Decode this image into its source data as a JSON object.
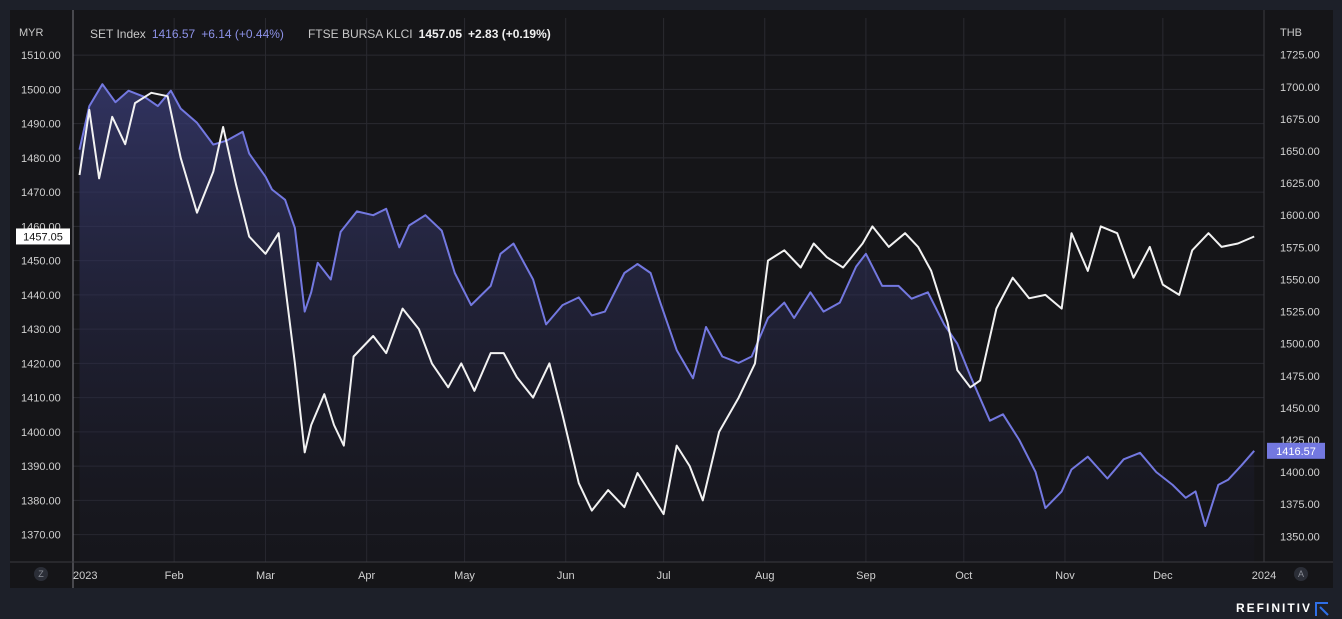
{
  "legend": {
    "set_name": "SET Index",
    "set_value": "1416.57",
    "set_change": "+6.14 (+0.44%)",
    "klci_name": "FTSE BURSA KLCI",
    "klci_value": "1457.05",
    "klci_change": "+2.83 (+0.19%)"
  },
  "axes": {
    "left_unit": "MYR",
    "right_unit": "THB",
    "left_ticks": [
      "1510.00",
      "1500.00",
      "1490.00",
      "1480.00",
      "1470.00",
      "1460.00",
      "1450.00",
      "1440.00",
      "1430.00",
      "1420.00",
      "1410.00",
      "1400.00",
      "1390.00",
      "1380.00",
      "1370.00"
    ],
    "right_ticks": [
      "1725.00",
      "1700.00",
      "1675.00",
      "1650.00",
      "1625.00",
      "1600.00",
      "1575.00",
      "1550.00",
      "1525.00",
      "1500.00",
      "1475.00",
      "1450.00",
      "1425.00",
      "1400.00",
      "1375.00",
      "1350.00"
    ],
    "months": [
      "2023",
      "Feb",
      "Mar",
      "Apr",
      "May",
      "Jun",
      "Jul",
      "Aug",
      "Sep",
      "Oct",
      "Nov",
      "Dec",
      "2024"
    ]
  },
  "buttons": {
    "left": "Z",
    "right": "A"
  },
  "brand": "REFINITIV",
  "colors": {
    "set": "#7378e0",
    "klci": "#f2f2f2",
    "background": "#151518",
    "grid": "#2a2a30"
  },
  "chart_data": {
    "type": "line",
    "x_range": [
      "2023-01-01",
      "2024-01-01"
    ],
    "grid": true,
    "series": [
      {
        "name": "SET Index",
        "axis": "right (THB)",
        "current_value": 1416.57,
        "area_fill": true,
        "points": [
          [
            "2023-01-03",
            1651
          ],
          [
            "2023-01-06",
            1685
          ],
          [
            "2023-01-10",
            1702
          ],
          [
            "2023-01-14",
            1688
          ],
          [
            "2023-01-18",
            1697
          ],
          [
            "2023-01-23",
            1692
          ],
          [
            "2023-01-27",
            1685
          ],
          [
            "2023-01-31",
            1697
          ],
          [
            "2023-02-03",
            1683
          ],
          [
            "2023-02-08",
            1672
          ],
          [
            "2023-02-13",
            1655
          ],
          [
            "2023-02-17",
            1658
          ],
          [
            "2023-02-22",
            1665
          ],
          [
            "2023-02-24",
            1648
          ],
          [
            "2023-03-01",
            1630
          ],
          [
            "2023-03-03",
            1620
          ],
          [
            "2023-03-07",
            1612
          ],
          [
            "2023-03-10",
            1590
          ],
          [
            "2023-03-13",
            1525
          ],
          [
            "2023-03-15",
            1540
          ],
          [
            "2023-03-17",
            1563
          ],
          [
            "2023-03-21",
            1550
          ],
          [
            "2023-03-24",
            1587
          ],
          [
            "2023-03-29",
            1603
          ],
          [
            "2023-04-03",
            1600
          ],
          [
            "2023-04-07",
            1605
          ],
          [
            "2023-04-11",
            1575
          ],
          [
            "2023-04-14",
            1592
          ],
          [
            "2023-04-19",
            1600
          ],
          [
            "2023-04-24",
            1588
          ],
          [
            "2023-04-28",
            1555
          ],
          [
            "2023-05-03",
            1530
          ],
          [
            "2023-05-09",
            1545
          ],
          [
            "2023-05-12",
            1570
          ],
          [
            "2023-05-16",
            1578
          ],
          [
            "2023-05-22",
            1550
          ],
          [
            "2023-05-26",
            1515
          ],
          [
            "2023-05-31",
            1530
          ],
          [
            "2023-06-05",
            1536
          ],
          [
            "2023-06-09",
            1522
          ],
          [
            "2023-06-13",
            1525
          ],
          [
            "2023-06-19",
            1555
          ],
          [
            "2023-06-23",
            1562
          ],
          [
            "2023-06-27",
            1555
          ],
          [
            "2023-06-30",
            1532
          ],
          [
            "2023-07-05",
            1495
          ],
          [
            "2023-07-10",
            1473
          ],
          [
            "2023-07-14",
            1513
          ],
          [
            "2023-07-19",
            1490
          ],
          [
            "2023-07-24",
            1485
          ],
          [
            "2023-07-28",
            1490
          ],
          [
            "2023-08-02",
            1520
          ],
          [
            "2023-08-07",
            1532
          ],
          [
            "2023-08-10",
            1520
          ],
          [
            "2023-08-15",
            1540
          ],
          [
            "2023-08-19",
            1525
          ],
          [
            "2023-08-24",
            1532
          ],
          [
            "2023-08-29",
            1560
          ],
          [
            "2023-09-01",
            1570
          ],
          [
            "2023-09-06",
            1545
          ],
          [
            "2023-09-11",
            1545
          ],
          [
            "2023-09-15",
            1535
          ],
          [
            "2023-09-20",
            1540
          ],
          [
            "2023-09-25",
            1515
          ],
          [
            "2023-09-29",
            1500
          ],
          [
            "2023-10-03",
            1475
          ],
          [
            "2023-10-09",
            1440
          ],
          [
            "2023-10-13",
            1445
          ],
          [
            "2023-10-18",
            1425
          ],
          [
            "2023-10-23",
            1400
          ],
          [
            "2023-10-26",
            1372
          ],
          [
            "2023-10-31",
            1385
          ],
          [
            "2023-11-03",
            1402
          ],
          [
            "2023-11-08",
            1412
          ],
          [
            "2023-11-14",
            1395
          ],
          [
            "2023-11-19",
            1410
          ],
          [
            "2023-11-24",
            1415
          ],
          [
            "2023-11-29",
            1400
          ],
          [
            "2023-12-04",
            1390
          ],
          [
            "2023-12-08",
            1380
          ],
          [
            "2023-12-11",
            1385
          ],
          [
            "2023-12-14",
            1358
          ],
          [
            "2023-12-18",
            1390
          ],
          [
            "2023-12-21",
            1394
          ],
          [
            "2023-12-25",
            1405
          ],
          [
            "2023-12-29",
            1416.57
          ]
        ]
      },
      {
        "name": "FTSE BURSA KLCI",
        "axis": "left (MYR)",
        "current_value": 1457.05,
        "area_fill": false,
        "points": [
          [
            "2023-01-03",
            1475
          ],
          [
            "2023-01-06",
            1494
          ],
          [
            "2023-01-09",
            1474
          ],
          [
            "2023-01-13",
            1492
          ],
          [
            "2023-01-17",
            1484
          ],
          [
            "2023-01-20",
            1496
          ],
          [
            "2023-01-25",
            1499
          ],
          [
            "2023-01-30",
            1498
          ],
          [
            "2023-02-03",
            1480
          ],
          [
            "2023-02-08",
            1464
          ],
          [
            "2023-02-13",
            1476
          ],
          [
            "2023-02-16",
            1489
          ],
          [
            "2023-02-20",
            1472
          ],
          [
            "2023-02-24",
            1457
          ],
          [
            "2023-03-01",
            1452
          ],
          [
            "2023-03-05",
            1458
          ],
          [
            "2023-03-10",
            1420
          ],
          [
            "2023-03-13",
            1394
          ],
          [
            "2023-03-15",
            1402
          ],
          [
            "2023-03-19",
            1411
          ],
          [
            "2023-03-22",
            1402
          ],
          [
            "2023-03-25",
            1396
          ],
          [
            "2023-03-28",
            1422
          ],
          [
            "2023-04-03",
            1428
          ],
          [
            "2023-04-07",
            1423
          ],
          [
            "2023-04-12",
            1436
          ],
          [
            "2023-04-17",
            1430
          ],
          [
            "2023-04-21",
            1420
          ],
          [
            "2023-04-26",
            1413
          ],
          [
            "2023-04-30",
            1420
          ],
          [
            "2023-05-04",
            1412
          ],
          [
            "2023-05-09",
            1423
          ],
          [
            "2023-05-13",
            1423
          ],
          [
            "2023-05-17",
            1416
          ],
          [
            "2023-05-22",
            1410
          ],
          [
            "2023-05-27",
            1420
          ],
          [
            "2023-05-31",
            1405
          ],
          [
            "2023-06-05",
            1385
          ],
          [
            "2023-06-09",
            1377
          ],
          [
            "2023-06-14",
            1383
          ],
          [
            "2023-06-19",
            1378
          ],
          [
            "2023-06-23",
            1388
          ],
          [
            "2023-06-27",
            1382
          ],
          [
            "2023-07-01",
            1376
          ],
          [
            "2023-07-05",
            1396
          ],
          [
            "2023-07-09",
            1390
          ],
          [
            "2023-07-13",
            1380
          ],
          [
            "2023-07-18",
            1400
          ],
          [
            "2023-07-24",
            1410
          ],
          [
            "2023-07-29",
            1420
          ],
          [
            "2023-08-02",
            1450
          ],
          [
            "2023-08-07",
            1453
          ],
          [
            "2023-08-12",
            1448
          ],
          [
            "2023-08-16",
            1455
          ],
          [
            "2023-08-20",
            1451
          ],
          [
            "2023-08-25",
            1448
          ],
          [
            "2023-08-31",
            1455
          ],
          [
            "2023-09-03",
            1460
          ],
          [
            "2023-09-08",
            1454
          ],
          [
            "2023-09-13",
            1458
          ],
          [
            "2023-09-17",
            1454
          ],
          [
            "2023-09-21",
            1447
          ],
          [
            "2023-09-26",
            1432
          ],
          [
            "2023-09-29",
            1418
          ],
          [
            "2023-10-03",
            1413
          ],
          [
            "2023-10-06",
            1415
          ],
          [
            "2023-10-11",
            1436
          ],
          [
            "2023-10-16",
            1445
          ],
          [
            "2023-10-21",
            1439
          ],
          [
            "2023-10-26",
            1440
          ],
          [
            "2023-10-31",
            1436
          ],
          [
            "2023-11-03",
            1458
          ],
          [
            "2023-11-08",
            1447
          ],
          [
            "2023-11-12",
            1460
          ],
          [
            "2023-11-17",
            1458
          ],
          [
            "2023-11-22",
            1445
          ],
          [
            "2023-11-27",
            1454
          ],
          [
            "2023-12-01",
            1443
          ],
          [
            "2023-12-06",
            1440
          ],
          [
            "2023-12-10",
            1453
          ],
          [
            "2023-12-15",
            1458
          ],
          [
            "2023-12-19",
            1454
          ],
          [
            "2023-12-24",
            1455
          ],
          [
            "2023-12-29",
            1457.05
          ]
        ]
      }
    ],
    "left_axis": {
      "label": "MYR",
      "range": [
        1362,
        1515
      ]
    },
    "right_axis": {
      "label": "THB",
      "range": [
        1330,
        1738
      ]
    }
  }
}
